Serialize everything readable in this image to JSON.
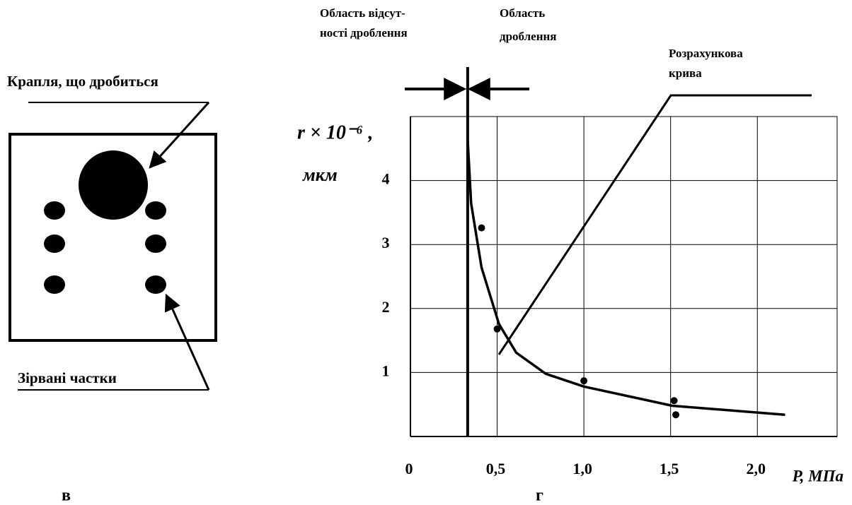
{
  "diagram": {
    "drop_label": "Крапля, що дробиться",
    "particles_label": "Зірвані частки",
    "panel_label": "в"
  },
  "chart_data": {
    "type": "line",
    "panel_label": "г",
    "y_label": [
      "r × 10⁻⁶ ,",
      "мкм"
    ],
    "x_label": "P, МПа",
    "annotations": [
      [
        "Область відсут-",
        "ності дроблення"
      ],
      [
        "Область",
        "дроблення"
      ],
      [
        "Розрахункова",
        "крива"
      ]
    ],
    "xlim": [
      0,
      2.46
    ],
    "ylim": [
      0,
      5
    ],
    "xticks": [
      0,
      {
        "value": 0.5,
        "label": "0,5"
      },
      {
        "value": 1,
        "label": "1,0"
      },
      {
        "value": 1.5,
        "label": "1,5"
      },
      {
        "value": 2,
        "label": "2,0"
      }
    ],
    "yticks": [
      1,
      2,
      3,
      4
    ],
    "grid": true,
    "threshold_x": 0.33,
    "series": [
      {
        "color": "#000000",
        "x": [
          0.33,
          0.35,
          0.41,
          0.51,
          0.61,
          0.78,
          1.0,
          1.51,
          2.16
        ],
        "values": [
          4.64,
          3.64,
          2.64,
          1.76,
          1.31,
          0.98,
          0.78,
          0.48,
          0.34
        ]
      }
    ],
    "points": {
      "x": [
        0.41,
        0.5,
        1.0,
        1.52,
        1.53
      ],
      "y": [
        3.26,
        1.68,
        0.87,
        0.56,
        0.34
      ]
    }
  }
}
